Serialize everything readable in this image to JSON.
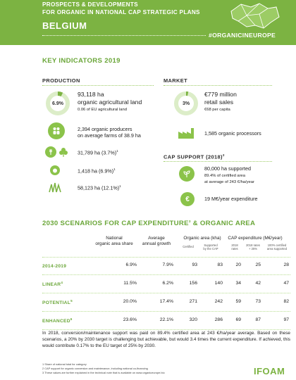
{
  "header": {
    "line1": "PROSPECTS & DEVELOPMENTS",
    "line2": "FOR ORGANIC IN NATIONAL CAP STRATEGIC PLANS",
    "country": "BELGIUM",
    "hashtag": "#ORGANICINEUROPE"
  },
  "key_indicators": {
    "title": "KEY INDICATORS 2019",
    "production": {
      "heading": "PRODUCTION",
      "ring_pct": "6.9%",
      "ring_fraction": 0.069,
      "area_ha": "93,118 ha",
      "area_label": "organic agricultural land",
      "eu_share": "0.06 of EU agricultural land",
      "producers": "2,394 organic producers",
      "farm_size": "on average farms of 38.9 ha",
      "arable": "31,789 ha (3.7%)",
      "permanent": "1,418 ha (6.9%)",
      "grassland": "58,123 ha (12.1%)",
      "sup1": "1"
    },
    "market": {
      "heading": "MARKET",
      "ring_pct": "3%",
      "ring_fraction": 0.03,
      "sales": "€779 million",
      "sales_label": "retail sales",
      "per_capita": "€68 per capita",
      "processors": "1,585 organic processors"
    },
    "cap_support": {
      "heading": "CAP SUPPORT (2018)",
      "sup": "2",
      "supported": "80,000 ha supported",
      "certified": "89.4% of certified area",
      "average": "at average of 243 €/ha/year",
      "expenditure": "19 M€/year expenditure"
    }
  },
  "scenarios": {
    "title": "2030 SCENARIOS FOR CAP EXPENDITURE",
    "title_sup": "3",
    "title_end": " & ORGANIC AREA",
    "col_share": [
      "National",
      "organic area share"
    ],
    "col_growth": [
      "Average",
      "annual growth"
    ],
    "col_area": "Organic area (kha)",
    "col_cap": "CAP expenditure (M€/year)",
    "sub_certified": "Certified",
    "sub_supported": [
      "Supported",
      "by the CAP"
    ],
    "sub_2018": [
      "2018",
      "rates"
    ],
    "sub_2018_25": [
      "2018 rates",
      "+ 25%"
    ],
    "sub_100": [
      "100% certified",
      "area supported"
    ],
    "rows": [
      {
        "label": "2014-2019",
        "sup": "",
        "share": "6.9%",
        "growth": "7.9%",
        "certified": "93",
        "supported": "83",
        "r2018": "20",
        "r25": "25",
        "r100": "28"
      },
      {
        "label": "LINEAR",
        "sup": "4",
        "share": "11.5%",
        "growth": "6.2%",
        "certified": "156",
        "supported": "140",
        "r2018": "34",
        "r25": "42",
        "r100": "47"
      },
      {
        "label": "POTENTIAL",
        "sup": "5",
        "share": "20.0%",
        "growth": "17.4%",
        "certified": "271",
        "supported": "242",
        "r2018": "59",
        "r25": "73",
        "r100": "82"
      },
      {
        "label": "ENHANCED",
        "sup": "6",
        "share": "23.6%",
        "growth": "22.1%",
        "certified": "320",
        "supported": "286",
        "r2018": "69",
        "r25": "87",
        "r100": "97"
      }
    ]
  },
  "summary": "In 2018, conversion/maintenance support was paid on 89.4% certified area at 243 €/ha/year average. Based on these scenarios, a 20% by 2030 target is challenging but achievable, but would 3.4 times the current expenditure. If achieved, this would contribute 0.17% to the EU target of 25% by 2030.",
  "footnotes": [
    "1 Share of national total for category",
    "2 CAP support for organic conversion and maintenance, including national co-financing",
    "3 These values are further explained in the technical note that is available on www.organiceurope.bio"
  ],
  "logo": "IFOAM",
  "colors": {
    "brand_green": "#7cb342",
    "accent_green": "#6aa638",
    "ring_track": "#dcedc8"
  }
}
